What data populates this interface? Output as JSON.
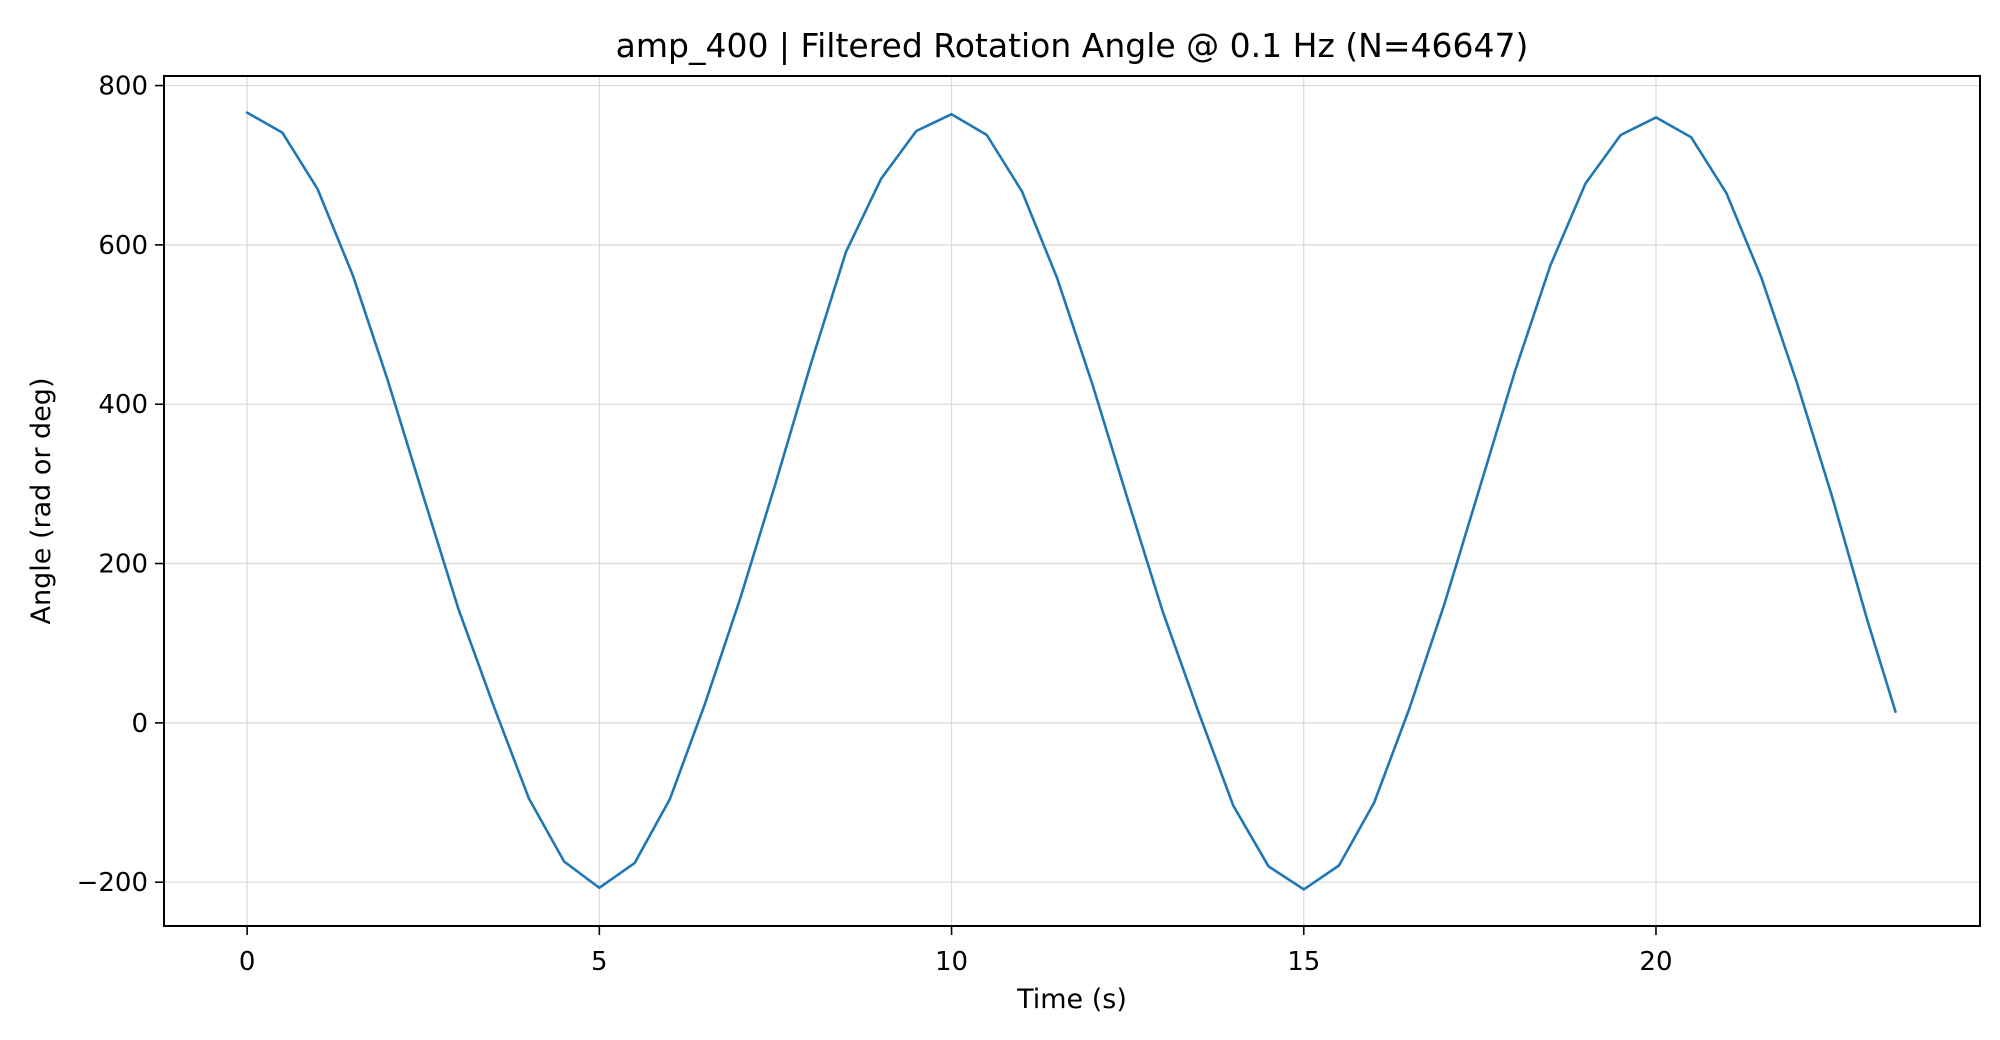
{
  "chart_data": {
    "type": "line",
    "title": "amp_400 | Filtered Rotation Angle @ 0.1 Hz  (N=46647)",
    "xlabel": "Time (s)",
    "ylabel": "Angle (rad or deg)",
    "xlim": [
      -1.18,
      24.6
    ],
    "ylim": [
      -255,
      812
    ],
    "xticks": [
      0,
      5,
      10,
      15,
      20
    ],
    "xtick_labels": [
      "0",
      "5",
      "10",
      "15",
      "20"
    ],
    "yticks": [
      -200,
      0,
      200,
      400,
      600,
      800
    ],
    "ytick_labels": [
      "−200",
      "0",
      "200",
      "400",
      "600",
      "800"
    ],
    "grid": true,
    "legend": "none",
    "colors": {
      "line": "#1f77b4",
      "grid": "#d9d9d9",
      "axes": "#000000"
    },
    "series": [
      {
        "x": [
          0,
          0.5,
          1,
          1.5,
          2,
          2.5,
          3,
          3.5,
          4,
          4.5,
          5,
          5.5,
          6,
          6.5,
          7,
          7.5,
          8,
          8.5,
          9,
          9.5,
          10,
          10.5,
          11,
          11.5,
          12,
          12.5,
          13,
          13.5,
          14,
          14.5,
          15,
          15.5,
          16,
          16.5,
          17,
          17.5,
          18,
          18.5,
          19,
          19.5,
          20,
          20.5,
          21,
          21.5,
          22,
          22.5,
          23,
          23.4
        ],
        "y": [
          766,
          741,
          670,
          562,
          429,
          285,
          143,
          21,
          -95,
          -174,
          -207,
          -176,
          -96,
          24,
          156,
          300,
          450,
          591,
          683,
          743,
          764,
          738,
          667,
          558,
          425,
          281,
          139,
          15,
          -104,
          -180,
          -209,
          -179,
          -100,
          18,
          150,
          296,
          442,
          574,
          677,
          738,
          760,
          735,
          665,
          558,
          427,
          284,
          129,
          14
        ]
      }
    ]
  }
}
